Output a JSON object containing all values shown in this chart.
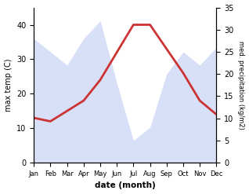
{
  "months": [
    "Jan",
    "Feb",
    "Mar",
    "Apr",
    "May",
    "Jun",
    "Jul",
    "Aug",
    "Sep",
    "Oct",
    "Nov",
    "Dec"
  ],
  "temp": [
    13,
    12,
    15,
    18,
    24,
    32,
    40,
    40,
    33,
    26,
    18,
    14
  ],
  "precip": [
    28,
    25,
    22,
    28,
    32,
    18,
    5,
    8,
    20,
    25,
    22,
    26
  ],
  "temp_color": "#cc3333",
  "precip_color": "#aabbee",
  "ylabel_left": "max temp (C)",
  "ylabel_right": "med. precipitation (kg/m2)",
  "xlabel": "date (month)",
  "ylim_left": [
    0,
    45
  ],
  "ylim_right": [
    0,
    35
  ],
  "yticks_left": [
    0,
    10,
    20,
    30,
    40
  ],
  "yticks_right": [
    0,
    5,
    10,
    15,
    20,
    25,
    30,
    35
  ],
  "background_color": "#ffffff",
  "temp_linewidth": 2.0,
  "precip_alpha": 0.45
}
